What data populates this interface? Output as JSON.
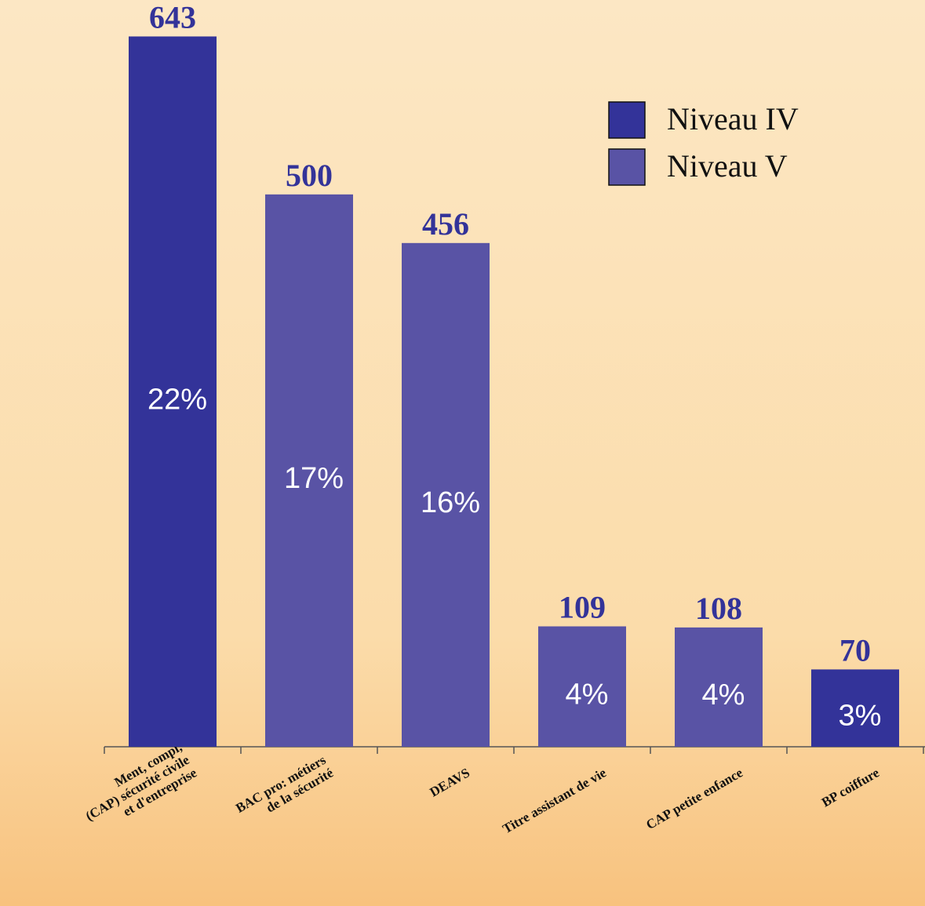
{
  "chart_data": {
    "type": "bar",
    "categories": [
      "Ment, compl,\n(CAP) sécurité civile\net d'entreprise",
      "BAC pro: métiers\nde la sécurité",
      "DEAVS",
      "Titre assistant de vie",
      "CAP petite enfance",
      "BP coiffure"
    ],
    "series": [
      {
        "name": "Niveau IV",
        "color": "#333399",
        "values": [
          643,
          null,
          null,
          null,
          null,
          70
        ]
      },
      {
        "name": "Niveau V",
        "color": "#5953a5",
        "values": [
          null,
          500,
          456,
          109,
          108,
          null
        ]
      }
    ],
    "share_labels": [
      "22%",
      "17%",
      "16%",
      "4%",
      "4%",
      "3%"
    ],
    "ylim": [
      0,
      676
    ],
    "legend": "upper right"
  }
}
